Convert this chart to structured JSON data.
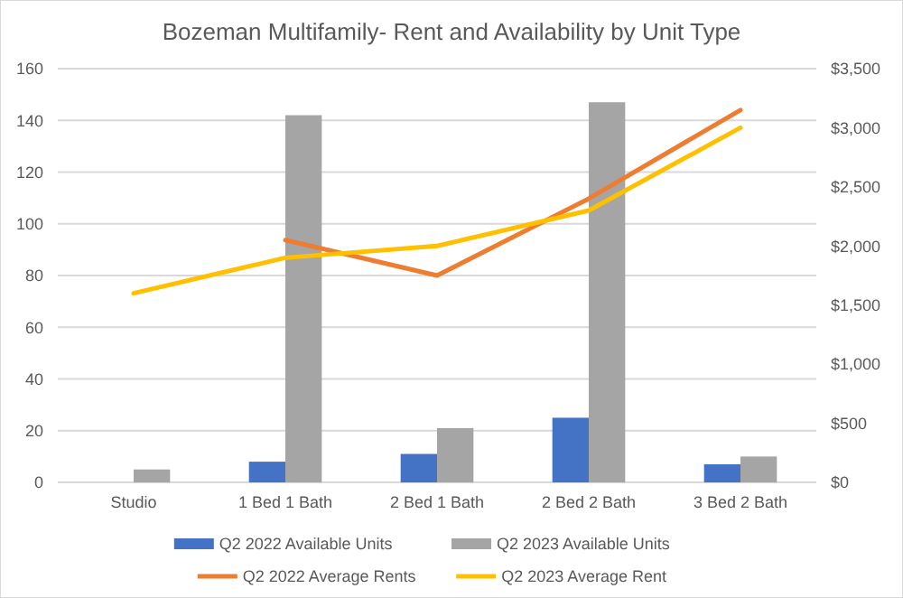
{
  "chart_data": {
    "type": "bar",
    "title": "Bozeman Multifamily- Rent and Availability by Unit Type",
    "categories": [
      "Studio",
      "1 Bed 1 Bath",
      "2 Bed 1 Bath",
      "2 Bed 2 Bath",
      "3 Bed 2 Bath"
    ],
    "series": [
      {
        "name": "Q2 2022 Available Units",
        "color": "#4472c4",
        "values": [
          null,
          8,
          11,
          25,
          7
        ]
      },
      {
        "name": "Q2 2023 Available Units",
        "color": "#a5a5a5",
        "values": [
          5,
          142,
          21,
          147,
          10
        ]
      },
      {
        "name": "Q2 2022 Average Rents",
        "type": "line",
        "axis": "y2",
        "color": "#ed7d31",
        "values": [
          null,
          2050,
          1750,
          2400,
          3150
        ]
      },
      {
        "name": "Q2 2023 Average Rent",
        "type": "line",
        "axis": "y2",
        "color": "#ffc000",
        "values": [
          1600,
          1900,
          2000,
          2300,
          3000
        ]
      }
    ],
    "ylim": [
      0,
      160
    ],
    "yticks": [
      0,
      20,
      40,
      60,
      80,
      100,
      120,
      140,
      160
    ],
    "y2lim": [
      0,
      3500
    ],
    "y2ticks": [
      {
        "value": 0,
        "label": "$0"
      },
      {
        "value": 500,
        "label": "$500"
      },
      {
        "value": 1000,
        "label": "$1,000"
      },
      {
        "value": 1500,
        "label": "$1,500"
      },
      {
        "value": 2000,
        "label": "$2,000"
      },
      {
        "value": 2500,
        "label": "$2,500"
      },
      {
        "value": 3000,
        "label": "$3,000"
      },
      {
        "value": 3500,
        "label": "$3,500"
      }
    ],
    "grid": "y",
    "legend": "bottom"
  }
}
